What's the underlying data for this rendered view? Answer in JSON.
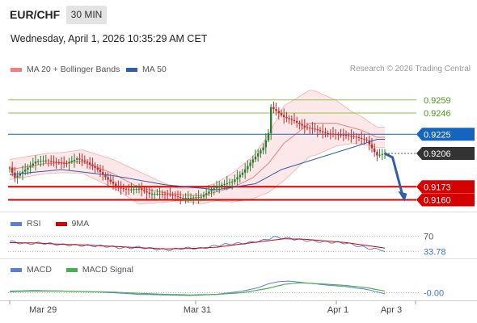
{
  "header": {
    "pair": "EUR/CHF",
    "timeframe": "30 MIN",
    "datetime": "Wednesday, April 1, 2026 10:35:29 AM CET"
  },
  "legend": {
    "bollinger": "MA 20 + Bollinger Bands",
    "ma50": "MA 50",
    "credit": "Research © 2026 Trading Central"
  },
  "colors": {
    "price_up": "#2e7d32",
    "price_down": "#c62828",
    "bollinger": "#f08080",
    "ma50": "#2f5fa8",
    "resistance": "#8bc34a",
    "support": "#d50000",
    "pivot": "#1565c0",
    "forecast": "#2f5fa8"
  },
  "chart_data": [
    {
      "type": "candlestick",
      "title": "EUR/CHF 30 MIN",
      "ylim": [
        0.915,
        0.9278
      ],
      "x_ticks": [
        "Mar 29",
        "Mar 31",
        "Apr 1",
        "Apr 3"
      ],
      "levels": [
        {
          "label": "0.9259",
          "value": 0.9259,
          "kind": "resistance"
        },
        {
          "label": "0.9246",
          "value": 0.9246,
          "kind": "resistance"
        },
        {
          "label": "0.9225",
          "value": 0.9225,
          "kind": "pivot"
        },
        {
          "label": "0.9206",
          "value": 0.9206,
          "kind": "last"
        },
        {
          "label": "0.9173",
          "value": 0.9173,
          "kind": "support"
        },
        {
          "label": "0.9160",
          "value": 0.916,
          "kind": "support"
        }
      ],
      "price_anchors": [
        [
          0,
          0.9192
        ],
        [
          2,
          0.9182
        ],
        [
          6,
          0.919
        ],
        [
          10,
          0.9198
        ],
        [
          14,
          0.9199
        ],
        [
          18,
          0.9197
        ],
        [
          22,
          0.9196
        ],
        [
          26,
          0.9201
        ],
        [
          30,
          0.9197
        ],
        [
          34,
          0.919
        ],
        [
          38,
          0.918
        ],
        [
          42,
          0.9172
        ],
        [
          46,
          0.917
        ],
        [
          50,
          0.9171
        ],
        [
          54,
          0.9166
        ],
        [
          58,
          0.9166
        ],
        [
          62,
          0.9165
        ],
        [
          66,
          0.9162
        ],
        [
          70,
          0.9162
        ],
        [
          74,
          0.9163
        ],
        [
          78,
          0.917
        ],
        [
          82,
          0.9175
        ],
        [
          86,
          0.9178
        ],
        [
          90,
          0.9187
        ],
        [
          94,
          0.92
        ],
        [
          98,
          0.9212
        ],
        [
          100,
          0.9226
        ],
        [
          101,
          0.9252
        ],
        [
          103,
          0.9248
        ],
        [
          106,
          0.9242
        ],
        [
          110,
          0.9238
        ],
        [
          114,
          0.9232
        ],
        [
          118,
          0.923
        ],
        [
          122,
          0.9226
        ],
        [
          126,
          0.9225
        ],
        [
          130,
          0.9224
        ],
        [
          134,
          0.9222
        ],
        [
          138,
          0.9219
        ],
        [
          140,
          0.9211
        ],
        [
          142,
          0.9204
        ],
        [
          145,
          0.9206
        ]
      ],
      "ma50_anchors": [
        [
          0,
          0.9185
        ],
        [
          20,
          0.919
        ],
        [
          40,
          0.9184
        ],
        [
          60,
          0.9175
        ],
        [
          80,
          0.917
        ],
        [
          95,
          0.9176
        ],
        [
          105,
          0.919
        ],
        [
          120,
          0.9202
        ],
        [
          135,
          0.9214
        ],
        [
          142,
          0.922
        ]
      ],
      "bollinger_mid_anchors": [
        [
          0,
          0.919
        ],
        [
          14,
          0.9196
        ],
        [
          28,
          0.9198
        ],
        [
          40,
          0.9186
        ],
        [
          50,
          0.9172
        ],
        [
          62,
          0.9166
        ],
        [
          74,
          0.9164
        ],
        [
          86,
          0.9172
        ],
        [
          94,
          0.9182
        ],
        [
          100,
          0.9196
        ],
        [
          106,
          0.9216
        ],
        [
          116,
          0.9236
        ],
        [
          126,
          0.9236
        ],
        [
          136,
          0.9229
        ],
        [
          142,
          0.9222
        ]
      ],
      "bollinger_width_anchors": [
        [
          0,
          0.001
        ],
        [
          20,
          0.001
        ],
        [
          40,
          0.0014
        ],
        [
          50,
          0.0016
        ],
        [
          65,
          0.0006
        ],
        [
          80,
          0.0009
        ],
        [
          95,
          0.0022
        ],
        [
          106,
          0.0037
        ],
        [
          118,
          0.0032
        ],
        [
          132,
          0.0016
        ],
        [
          142,
          0.001
        ]
      ],
      "forecast": [
        [
          145,
          0.9206
        ],
        [
          148,
          0.9202
        ],
        [
          152,
          0.9163
        ]
      ]
    },
    {
      "type": "line",
      "title": "RSI",
      "series": [
        {
          "name": "RSI"
        },
        {
          "name": "9MA"
        }
      ],
      "ylim": [
        0,
        100
      ],
      "levels": [
        {
          "label": "70",
          "value": 70
        },
        {
          "label": "33.78",
          "value": 33.78
        }
      ],
      "rsi_anchors": [
        [
          0,
          58
        ],
        [
          6,
          52
        ],
        [
          12,
          54
        ],
        [
          20,
          50
        ],
        [
          30,
          48
        ],
        [
          38,
          46
        ],
        [
          44,
          42
        ],
        [
          50,
          44
        ],
        [
          56,
          40
        ],
        [
          62,
          38
        ],
        [
          68,
          42
        ],
        [
          74,
          41
        ],
        [
          80,
          48
        ],
        [
          86,
          52
        ],
        [
          92,
          54
        ],
        [
          98,
          60
        ],
        [
          102,
          68
        ],
        [
          106,
          66
        ],
        [
          112,
          62
        ],
        [
          118,
          58
        ],
        [
          124,
          56
        ],
        [
          130,
          54
        ],
        [
          136,
          45
        ],
        [
          140,
          40
        ],
        [
          144,
          38
        ],
        [
          145,
          33.78
        ]
      ],
      "ma9_anchors": [
        [
          0,
          55
        ],
        [
          10,
          54
        ],
        [
          20,
          51
        ],
        [
          30,
          49
        ],
        [
          40,
          46
        ],
        [
          50,
          43
        ],
        [
          60,
          40
        ],
        [
          70,
          41
        ],
        [
          80,
          44
        ],
        [
          90,
          52
        ],
        [
          98,
          58
        ],
        [
          106,
          64
        ],
        [
          114,
          63
        ],
        [
          122,
          59
        ],
        [
          130,
          55
        ],
        [
          138,
          48
        ],
        [
          145,
          42
        ]
      ]
    },
    {
      "type": "line",
      "title": "MACD",
      "series": [
        {
          "name": "MACD"
        },
        {
          "name": "MACD Signal"
        }
      ],
      "levels": [
        {
          "label": "-0.00",
          "value": 0.0
        }
      ],
      "macd_anchors": [
        [
          0,
          0.3
        ],
        [
          10,
          0.4
        ],
        [
          20,
          0.3
        ],
        [
          30,
          0.2
        ],
        [
          40,
          0.0
        ],
        [
          50,
          -0.3
        ],
        [
          60,
          -0.4
        ],
        [
          70,
          -0.5
        ],
        [
          80,
          -0.3
        ],
        [
          90,
          0.3
        ],
        [
          96,
          0.9
        ],
        [
          100,
          1.6
        ],
        [
          104,
          2.0
        ],
        [
          108,
          2.1
        ],
        [
          114,
          1.8
        ],
        [
          122,
          1.4
        ],
        [
          130,
          1.1
        ],
        [
          138,
          0.6
        ],
        [
          145,
          -0.2
        ]
      ],
      "signal_anchors": [
        [
          0,
          0.2
        ],
        [
          10,
          0.3
        ],
        [
          20,
          0.3
        ],
        [
          30,
          0.2
        ],
        [
          40,
          0.1
        ],
        [
          50,
          -0.1
        ],
        [
          60,
          -0.3
        ],
        [
          70,
          -0.4
        ],
        [
          80,
          -0.3
        ],
        [
          90,
          0.0
        ],
        [
          100,
          0.8
        ],
        [
          106,
          1.5
        ],
        [
          112,
          1.8
        ],
        [
          120,
          1.6
        ],
        [
          130,
          1.3
        ],
        [
          138,
          0.9
        ],
        [
          145,
          0.3
        ]
      ]
    }
  ]
}
